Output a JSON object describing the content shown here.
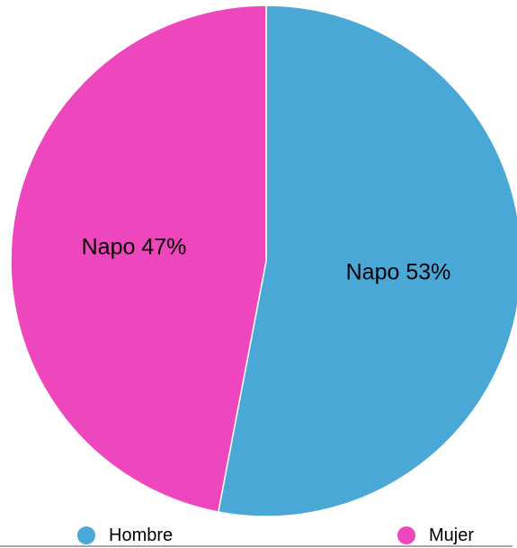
{
  "chart_data": {
    "type": "pie",
    "slices": [
      {
        "label": "Napo 53%",
        "category": "Hombre",
        "value": 53,
        "color": "#4aa8d6"
      },
      {
        "label": "Napo 47%",
        "category": "Mujer",
        "value": 47,
        "color": "#ee47bd"
      }
    ],
    "legend": {
      "position": "bottom",
      "entries": [
        {
          "label": "Hombre",
          "color": "#4aa8d6"
        },
        {
          "label": "Mujer",
          "color": "#ee47bd"
        }
      ]
    }
  }
}
